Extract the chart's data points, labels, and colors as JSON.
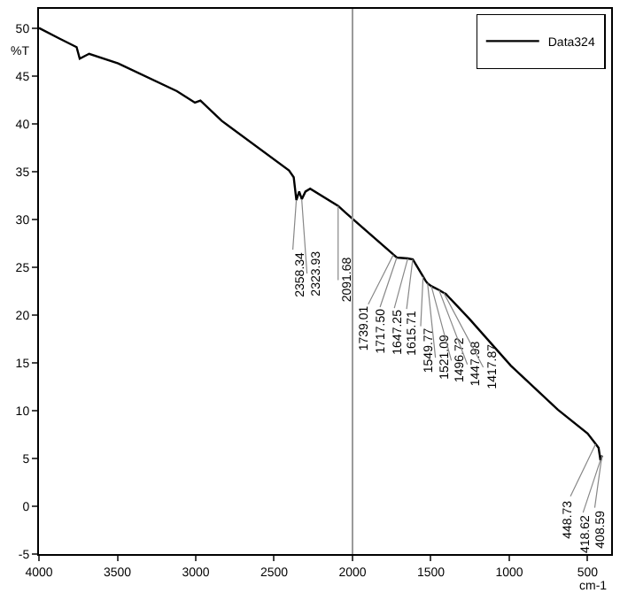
{
  "chart_data": {
    "type": "line",
    "ylabel": "%T",
    "xlabel": "cm-1",
    "xlim": [
      4000,
      350
    ],
    "ylim": [
      -5,
      52
    ],
    "xticks": [
      4000,
      3500,
      3000,
      2500,
      2000,
      1500,
      1000,
      500
    ],
    "yticks": [
      -5,
      0,
      5,
      10,
      15,
      20,
      25,
      30,
      35,
      40,
      45,
      50
    ],
    "legend": "top right",
    "marker": "none",
    "line_style": "solid",
    "ref_lines": [
      {
        "axis": "x",
        "value": 2000,
        "color": "#999999"
      }
    ],
    "series": [
      {
        "name": "Data324",
        "color": "#000000",
        "x": [
          4000,
          3870,
          3760,
          3740,
          3680,
          3495,
          3120,
          3005,
          2970,
          2835,
          2405,
          2375,
          2358,
          2340,
          2323,
          2300,
          2270,
          2091,
          2045,
          1745,
          1739,
          1717,
          1647,
          1615,
          1549,
          1535,
          1521,
          1496,
          1447,
          1417,
          1405,
          1255,
          990,
          690,
          500,
          448,
          430,
          418,
          408
        ],
        "values": [
          50,
          48.9,
          48.0,
          46.8,
          47.3,
          46.3,
          43.4,
          42.2,
          42.4,
          40.3,
          35.1,
          34.4,
          32.0,
          32.9,
          32.1,
          32.9,
          33.2,
          31.4,
          30.7,
          26.4,
          26.3,
          26.0,
          25.9,
          25.8,
          24.0,
          23.6,
          23.3,
          23.0,
          22.6,
          22.3,
          22.2,
          19.6,
          14.7,
          10.1,
          7.6,
          6.5,
          6.1,
          4.8,
          5.3
        ]
      }
    ],
    "annotations": [
      {
        "text": "2358.34",
        "x": 2358.34,
        "y": 32.0
      },
      {
        "text": "2323.93",
        "x": 2323.93,
        "y": 32.1
      },
      {
        "text": "2091.68",
        "x": 2091.68,
        "y": 31.4
      },
      {
        "text": "1739.01",
        "x": 1739.01,
        "y": 26.3
      },
      {
        "text": "1717.50",
        "x": 1717.5,
        "y": 26.0
      },
      {
        "text": "1647.25",
        "x": 1647.25,
        "y": 25.9
      },
      {
        "text": "1615.71",
        "x": 1615.71,
        "y": 25.8
      },
      {
        "text": "1549.77",
        "x": 1549.77,
        "y": 24.0
      },
      {
        "text": "1521.09",
        "x": 1521.09,
        "y": 23.3
      },
      {
        "text": "1496.72",
        "x": 1496.72,
        "y": 23.0
      },
      {
        "text": "1447.98",
        "x": 1447.98,
        "y": 22.6
      },
      {
        "text": "1417.87",
        "x": 1417.87,
        "y": 22.3
      },
      {
        "text": "448.73",
        "x": 448.73,
        "y": 6.5
      },
      {
        "text": "418.62",
        "x": 418.62,
        "y": 4.8
      },
      {
        "text": "408.59",
        "x": 408.59,
        "y": 5.3
      }
    ]
  }
}
